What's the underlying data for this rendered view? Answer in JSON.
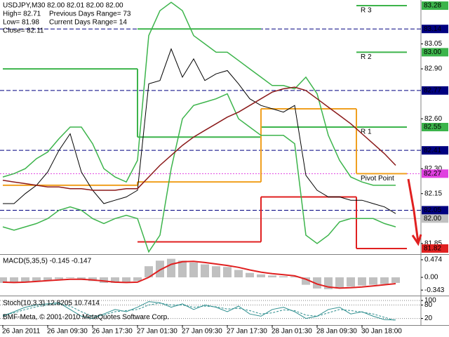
{
  "chart_data": [
    {
      "type": "price",
      "info": {
        "symbol": "USDJPY,M30  82.00 82.01 82.00 82.00",
        "high": "High= 82.71",
        "prev_range": "Previous Days Range= 73",
        "low": "Low= 81.98",
        "cur_range": "Current Days Range= 14",
        "close": "Close= 82.11"
      },
      "copyright": "BMF-Meta, © 2001-2010 MetaQuotes Software Corp.",
      "x": [
        0,
        4,
        8,
        12,
        16,
        20,
        24,
        28,
        32,
        36,
        40,
        44,
        48,
        52,
        56,
        60,
        64,
        68,
        72,
        76,
        80,
        84,
        88,
        92,
        96,
        100,
        104,
        108,
        112,
        116,
        120,
        124,
        128,
        132,
        136,
        140
      ],
      "xlim": [
        -1,
        149
      ],
      "xticks": [
        {
          "value": 0,
          "label": "26 Jan 2011"
        },
        {
          "value": 16,
          "label": "26 Jan 09:30"
        },
        {
          "value": 32,
          "label": "26 Jan 17:30"
        },
        {
          "value": 48,
          "label": "27 Jan 01:30"
        },
        {
          "value": 64,
          "label": "27 Jan 09:30"
        },
        {
          "value": 80,
          "label": "27 Jan 17:30"
        },
        {
          "value": 96,
          "label": "28 Jan 01:30"
        },
        {
          "value": 112,
          "label": "28 Jan 09:30"
        },
        {
          "value": 128,
          "label": "30 Jan 18:00"
        }
      ],
      "ylim": [
        81.786,
        83.314
      ],
      "yticks": [
        83.05,
        {
          "value": 82.9,
          "label": "82.90"
        },
        {
          "value": 82.6,
          "label": "82.60"
        },
        {
          "value": 82.3,
          "label": "82.30"
        },
        82.15,
        81.85
      ],
      "series": [
        {
          "color": "#000000",
          "values": [
            82.09,
            82.09,
            82.15,
            82.2,
            82.28,
            82.41,
            82.51,
            82.28,
            82.17,
            82.09,
            82.11,
            82.13,
            82.17,
            82.81,
            82.83,
            83.02,
            82.85,
            82.96,
            82.83,
            82.87,
            82.89,
            82.81,
            82.72,
            82.68,
            82.66,
            82.64,
            82.68,
            82.26,
            82.17,
            82.13,
            82.13,
            82.11,
            82.11,
            82.09,
            82.07,
            82.03
          ]
        },
        {
          "color": "#3cb44b",
          "values": [
            82.25,
            82.27,
            82.3,
            82.36,
            82.4,
            82.48,
            82.55,
            82.55,
            82.45,
            82.3,
            82.25,
            82.22,
            82.35,
            83.1,
            83.25,
            83.3,
            83.25,
            83.1,
            83.05,
            83.0,
            83.0,
            82.95,
            82.9,
            82.85,
            82.8,
            82.8,
            82.78,
            82.85,
            82.75,
            82.5,
            82.35,
            82.25,
            82.22,
            82.2,
            82.2,
            82.2
          ]
        },
        {
          "color": "#3cb44b",
          "values": [
            81.95,
            81.93,
            81.95,
            81.97,
            82.0,
            82.05,
            82.07,
            82.05,
            82.0,
            81.97,
            82.0,
            82.02,
            82.0,
            81.8,
            81.9,
            82.3,
            82.6,
            82.68,
            82.7,
            82.72,
            82.75,
            82.6,
            82.55,
            82.5,
            82.5,
            82.5,
            82.45,
            81.9,
            81.85,
            81.9,
            81.98,
            82.0,
            82.0,
            82.0,
            81.97,
            81.95
          ]
        },
        {
          "color": "#8b1a1a",
          "values": [
            82.23,
            82.22,
            82.21,
            82.2,
            82.19,
            82.19,
            82.18,
            82.18,
            82.17,
            82.17,
            82.17,
            82.18,
            82.18,
            82.25,
            82.32,
            82.38,
            82.44,
            82.49,
            82.53,
            82.57,
            82.61,
            82.64,
            82.68,
            82.72,
            82.76,
            82.78,
            82.79,
            82.77,
            82.72,
            82.67,
            82.62,
            82.57,
            82.51,
            82.45,
            82.39,
            82.32
          ]
        }
      ],
      "pivots": {
        "boundaries": [
          0,
          48,
          92,
          126,
          144
        ],
        "lines": [
          {
            "name": "R 3",
            "color": "#3cb44b",
            "values": [
              null,
              null,
              null,
              83.28
            ]
          },
          {
            "name": "R 2",
            "color": "#3cb44b",
            "values": [
              null,
              83.14,
              null,
              83.0
            ]
          },
          {
            "name": "R 1",
            "color": "#3cb44b",
            "values": [
              82.9,
              82.49,
              82.55,
              82.55
            ]
          },
          {
            "name": "Pivot Point",
            "color": "#f0a020",
            "values": [
              82.2,
              82.22,
              82.66,
              82.27
            ]
          },
          {
            "color": "#e02020",
            "values": [
              null,
              81.86,
              82.13,
              81.82
            ]
          }
        ]
      },
      "levels": [
        {
          "value": 83.28,
          "label": "83.28",
          "color": "#3cb44b",
          "style": "none"
        },
        {
          "value": 83.14,
          "label": "83.14",
          "color": "#000080",
          "style": "dash"
        },
        {
          "value": 83.0,
          "label": "83.00",
          "color": "#3cb44b",
          "style": "none"
        },
        {
          "value": 82.77,
          "label": "82.77",
          "color": "#000080",
          "style": "dash"
        },
        {
          "value": 82.55,
          "label": "82.55",
          "color": "#3cb44b",
          "style": "none"
        },
        {
          "value": 82.41,
          "label": "82.41",
          "color": "#000080",
          "style": "dash"
        },
        {
          "value": 82.27,
          "label": "82.27",
          "color": "#e040e0",
          "style": "dot"
        },
        {
          "value": 82.05,
          "label": "82.05",
          "color": "#000080",
          "style": "dash"
        },
        {
          "value": 82.0,
          "label": "82.00",
          "color": "#c0c0c0",
          "style": "solid"
        },
        {
          "value": 81.82,
          "label": "81.82",
          "color": "#e02020",
          "style": "none"
        }
      ]
    },
    {
      "type": "histogram",
      "label": "MACD(5,35,5) -0.145 -0.147",
      "ylim": [
        -0.472,
        0.587
      ],
      "yticks": [
        0.474,
        {
          "value": 0,
          "label": "0.00"
        },
        -0.343
      ],
      "values": [
        -0.15,
        -0.14,
        -0.12,
        -0.1,
        -0.08,
        -0.05,
        -0.02,
        -0.05,
        -0.1,
        -0.15,
        -0.15,
        -0.14,
        -0.1,
        0.3,
        0.45,
        0.5,
        0.45,
        0.4,
        0.35,
        0.3,
        0.28,
        0.2,
        0.12,
        0.08,
        0.05,
        0.03,
        0.02,
        -0.2,
        -0.3,
        -0.32,
        -0.3,
        -0.25,
        -0.22,
        -0.2,
        -0.18,
        -0.15
      ],
      "color": "#c0c0c0",
      "signal": {
        "color": "#e02020",
        "values": [
          -0.13,
          -0.14,
          -0.13,
          -0.11,
          -0.09,
          -0.07,
          -0.05,
          -0.05,
          -0.07,
          -0.1,
          -0.13,
          -0.14,
          -0.13,
          0.0,
          0.2,
          0.35,
          0.42,
          0.43,
          0.4,
          0.36,
          0.32,
          0.27,
          0.2,
          0.14,
          0.1,
          0.07,
          0.04,
          -0.05,
          -0.18,
          -0.26,
          -0.29,
          -0.28,
          -0.26,
          -0.23,
          -0.2,
          -0.17
        ]
      }
    },
    {
      "type": "line",
      "label": "Stoch(10,3,3) 12.8205 10.7414",
      "ylim": [
        0,
        100
      ],
      "yticks": [
        100,
        80,
        20
      ],
      "series": [
        {
          "color": "#2f8f8f",
          "values": [
            30,
            50,
            70,
            80,
            85,
            90,
            60,
            30,
            20,
            40,
            60,
            50,
            70,
            95,
            90,
            70,
            85,
            60,
            80,
            70,
            50,
            75,
            40,
            30,
            60,
            70,
            50,
            20,
            30,
            60,
            70,
            40,
            50,
            30,
            15,
            13
          ]
        },
        {
          "color": "#2f8f8f",
          "dashed": true,
          "values": [
            35,
            45,
            60,
            72,
            80,
            85,
            75,
            50,
            30,
            35,
            50,
            55,
            60,
            80,
            88,
            80,
            80,
            70,
            75,
            72,
            62,
            65,
            55,
            40,
            45,
            58,
            55,
            35,
            30,
            45,
            60,
            55,
            48,
            40,
            25,
            11
          ]
        }
      ]
    }
  ]
}
